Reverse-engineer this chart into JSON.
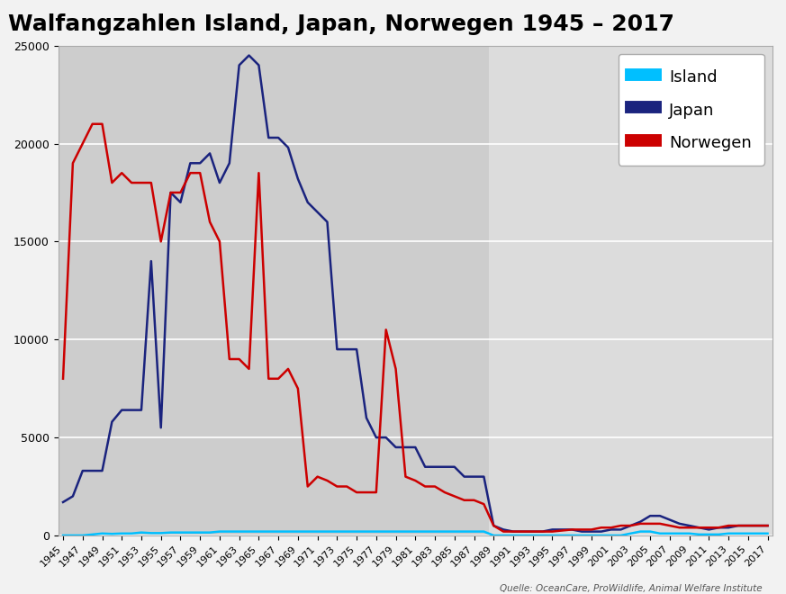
{
  "title": "Walfangzahlen Island, Japan, Norwegen 1945 – 2017",
  "source": "Quelle: OceanCare, ProWildlife, Animal Welfare Institute",
  "colors": {
    "Island": "#00BFFF",
    "Japan": "#1A237E",
    "Norwegen": "#CC0000"
  },
  "bg_left": "#CDCDCD",
  "bg_right": "#DCDCDC",
  "fig_bg": "#F2F2F2",
  "split_year": 1988,
  "ylim": [
    0,
    25000
  ],
  "yticks": [
    0,
    5000,
    10000,
    15000,
    20000,
    25000
  ],
  "years": [
    1945,
    1946,
    1947,
    1948,
    1949,
    1950,
    1951,
    1952,
    1953,
    1954,
    1955,
    1956,
    1957,
    1958,
    1959,
    1960,
    1961,
    1962,
    1963,
    1964,
    1965,
    1966,
    1967,
    1968,
    1969,
    1970,
    1971,
    1972,
    1973,
    1974,
    1975,
    1976,
    1977,
    1978,
    1979,
    1980,
    1981,
    1982,
    1983,
    1984,
    1985,
    1986,
    1987,
    1988,
    1989,
    1990,
    1991,
    1992,
    1993,
    1994,
    1995,
    1996,
    1997,
    1998,
    1999,
    2000,
    2001,
    2002,
    2003,
    2004,
    2005,
    2006,
    2007,
    2008,
    2009,
    2010,
    2011,
    2012,
    2013,
    2014,
    2015,
    2016,
    2017
  ],
  "island": [
    0,
    0,
    0,
    50,
    100,
    80,
    100,
    100,
    150,
    120,
    120,
    150,
    150,
    150,
    150,
    150,
    200,
    200,
    200,
    200,
    200,
    200,
    200,
    200,
    200,
    200,
    200,
    200,
    200,
    200,
    200,
    200,
    200,
    200,
    200,
    200,
    200,
    200,
    200,
    200,
    200,
    200,
    200,
    200,
    0,
    0,
    0,
    0,
    0,
    0,
    0,
    0,
    0,
    0,
    0,
    0,
    0,
    0,
    100,
    200,
    200,
    100,
    100,
    100,
    100,
    50,
    50,
    50,
    100,
    100,
    100,
    100,
    100
  ],
  "japan": [
    1700,
    2000,
    3300,
    3300,
    3300,
    5800,
    6400,
    6400,
    6400,
    14000,
    5500,
    17500,
    17000,
    19000,
    19000,
    19500,
    18000,
    19000,
    24000,
    24500,
    24000,
    20300,
    20300,
    19800,
    18200,
    17000,
    16500,
    16000,
    9500,
    9500,
    9500,
    6000,
    5000,
    5000,
    4500,
    4500,
    4500,
    3500,
    3500,
    3500,
    3500,
    3000,
    3000,
    3000,
    500,
    300,
    200,
    200,
    200,
    200,
    300,
    300,
    300,
    200,
    200,
    200,
    300,
    300,
    500,
    700,
    1000,
    1000,
    800,
    600,
    500,
    400,
    300,
    400,
    400,
    500,
    500,
    500,
    500
  ],
  "norwegen": [
    8000,
    19000,
    20000,
    21000,
    21000,
    18000,
    18500,
    18000,
    18000,
    18000,
    15000,
    17500,
    17500,
    18500,
    18500,
    16000,
    15000,
    9000,
    9000,
    8500,
    18500,
    8000,
    8000,
    8500,
    7500,
    2500,
    3000,
    2800,
    2500,
    2500,
    2200,
    2200,
    2200,
    10500,
    8500,
    3000,
    2800,
    2500,
    2500,
    2200,
    2000,
    1800,
    1800,
    1600,
    500,
    200,
    200,
    200,
    200,
    200,
    200,
    250,
    300,
    300,
    300,
    400,
    400,
    500,
    500,
    600,
    600,
    600,
    500,
    400,
    400,
    400,
    400,
    400,
    500,
    500,
    500,
    500,
    500
  ]
}
